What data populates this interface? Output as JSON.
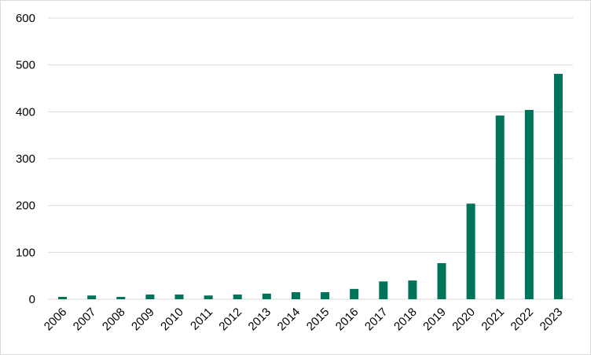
{
  "chart_data": {
    "type": "bar",
    "title": "",
    "xlabel": "",
    "ylabel": "",
    "categories": [
      "2006",
      "2007",
      "2008",
      "2009",
      "2010",
      "2011",
      "2012",
      "2013",
      "2014",
      "2015",
      "2016",
      "2017",
      "2018",
      "2019",
      "2020",
      "2021",
      "2022",
      "2023"
    ],
    "values": [
      5,
      8,
      5,
      10,
      10,
      8,
      10,
      12,
      15,
      15,
      22,
      38,
      40,
      77,
      204,
      392,
      404,
      481
    ],
    "ylim": [
      0,
      600
    ],
    "yticks": [
      "0",
      "100",
      "200",
      "300",
      "400",
      "500",
      "600"
    ],
    "grid": "horizontal",
    "legend": "none",
    "bar_color": "#00745a",
    "grid_color": "#d9d9d9"
  }
}
